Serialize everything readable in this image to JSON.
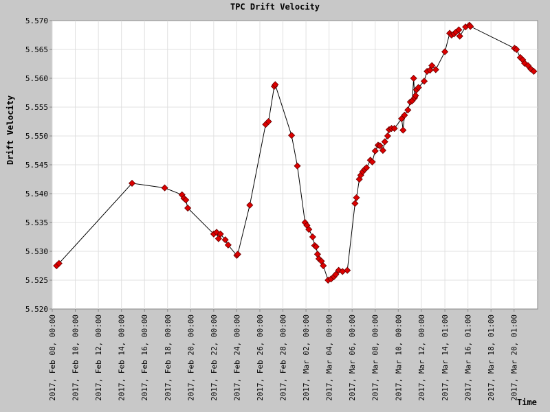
{
  "chart_data": {
    "type": "line",
    "title": "TPC Drift Velocity",
    "xlabel": "Time",
    "ylabel": "Drift Velocity",
    "ylim": [
      5.52,
      5.57
    ],
    "y_ticks": [
      "5.520",
      "5.525",
      "5.530",
      "5.535",
      "5.540",
      "5.545",
      "5.550",
      "5.555",
      "5.560",
      "5.565",
      "5.570"
    ],
    "x_ticks": [
      {
        "label": "2017, Feb 08, 00:00",
        "at": "2017-02-08T00:00"
      },
      {
        "label": "2017, Feb 10, 00:00",
        "at": "2017-02-10T00:00"
      },
      {
        "label": "2017, Feb 12, 00:00",
        "at": "2017-02-12T00:00"
      },
      {
        "label": "2017, Feb 14, 00:00",
        "at": "2017-02-14T00:00"
      },
      {
        "label": "2017, Feb 16, 00:00",
        "at": "2017-02-16T00:00"
      },
      {
        "label": "2017, Feb 18, 00:00",
        "at": "2017-02-18T00:00"
      },
      {
        "label": "2017, Feb 20, 00:00",
        "at": "2017-02-20T00:00"
      },
      {
        "label": "2017, Feb 22, 00:00",
        "at": "2017-02-22T00:00"
      },
      {
        "label": "2017, Feb 24, 00:00",
        "at": "2017-02-24T00:00"
      },
      {
        "label": "2017, Feb 26, 00:00",
        "at": "2017-02-26T00:00"
      },
      {
        "label": "2017, Feb 28, 00:00",
        "at": "2017-02-28T00:00"
      },
      {
        "label": "2017, Mar 02, 00:00",
        "at": "2017-03-02T00:00"
      },
      {
        "label": "2017, Mar 04, 00:00",
        "at": "2017-03-04T00:00"
      },
      {
        "label": "2017, Mar 06, 00:00",
        "at": "2017-03-06T00:00"
      },
      {
        "label": "2017, Mar 08, 00:00",
        "at": "2017-03-08T00:00"
      },
      {
        "label": "2017, Mar 10, 00:00",
        "at": "2017-03-10T00:00"
      },
      {
        "label": "2017, Mar 12, 00:00",
        "at": "2017-03-12T00:00"
      },
      {
        "label": "2017, Mar 14, 01:00",
        "at": "2017-03-14T01:00"
      },
      {
        "label": "2017, Mar 16, 01:00",
        "at": "2017-03-16T01:00"
      },
      {
        "label": "2017, Mar 18, 01:00",
        "at": "2017-03-18T01:00"
      },
      {
        "label": "2017, Mar 20, 01:00",
        "at": "2017-03-20T01:00"
      }
    ],
    "xlim": [
      "2017-02-08T00:00",
      "2017-03-22T02:00"
    ],
    "grid": true,
    "line_color": "#000000",
    "marker_color": "#dd0000",
    "series": [
      {
        "points": [
          [
            "2017-02-08T09:00",
            5.5275
          ],
          [
            "2017-02-08T14:00",
            5.5279
          ],
          [
            "2017-02-14T22:00",
            5.5418
          ],
          [
            "2017-02-17T18:00",
            5.541
          ],
          [
            "2017-02-19T06:00",
            5.5398
          ],
          [
            "2017-02-19T10:00",
            5.5392
          ],
          [
            "2017-02-19T14:00",
            5.5389
          ],
          [
            "2017-02-19T18:00",
            5.5375
          ],
          [
            "2017-02-22T00:00",
            5.533
          ],
          [
            "2017-02-22T06:00",
            5.5333
          ],
          [
            "2017-02-22T10:00",
            5.5322
          ],
          [
            "2017-02-22T14:00",
            5.533
          ],
          [
            "2017-02-23T00:00",
            5.532
          ],
          [
            "2017-02-23T06:00",
            5.5311
          ],
          [
            "2017-02-24T00:00",
            5.5293
          ],
          [
            "2017-02-24T02:00",
            5.5295
          ],
          [
            "2017-02-25T03:00",
            5.538
          ],
          [
            "2017-02-26T12:00",
            5.552
          ],
          [
            "2017-02-26T18:00",
            5.5525
          ],
          [
            "2017-02-27T06:00",
            5.5586
          ],
          [
            "2017-02-27T08:00",
            5.5589
          ],
          [
            "2017-02-28T18:00",
            5.5501
          ],
          [
            "2017-03-01T06:00",
            5.5448
          ],
          [
            "2017-03-01T22:00",
            5.535
          ],
          [
            "2017-03-02T02:00",
            5.5345
          ],
          [
            "2017-03-02T06:00",
            5.5338
          ],
          [
            "2017-03-02T14:00",
            5.5325
          ],
          [
            "2017-03-02T18:00",
            5.531
          ],
          [
            "2017-03-02T21:00",
            5.5308
          ],
          [
            "2017-03-03T00:00",
            5.5295
          ],
          [
            "2017-03-03T03:00",
            5.5287
          ],
          [
            "2017-03-03T08:00",
            5.5283
          ],
          [
            "2017-03-03T12:00",
            5.5275
          ],
          [
            "2017-03-03T22:00",
            5.525
          ],
          [
            "2017-03-04T04:00",
            5.5252
          ],
          [
            "2017-03-04T10:00",
            5.5256
          ],
          [
            "2017-03-04T14:00",
            5.526
          ],
          [
            "2017-03-04T20:00",
            5.5267
          ],
          [
            "2017-03-05T04:00",
            5.5265
          ],
          [
            "2017-03-05T14:00",
            5.5267
          ],
          [
            "2017-03-06T06:00",
            5.5383
          ],
          [
            "2017-03-06T09:00",
            5.5393
          ],
          [
            "2017-03-06T15:00",
            5.5425
          ],
          [
            "2017-03-06T18:00",
            5.5432
          ],
          [
            "2017-03-06T22:00",
            5.5438
          ],
          [
            "2017-03-07T02:00",
            5.5442
          ],
          [
            "2017-03-07T06:00",
            5.5445
          ],
          [
            "2017-03-07T14:00",
            5.5458
          ],
          [
            "2017-03-07T18:00",
            5.5455
          ],
          [
            "2017-03-08T00:00",
            5.5474
          ],
          [
            "2017-03-08T06:00",
            5.5484
          ],
          [
            "2017-03-08T10:00",
            5.5483
          ],
          [
            "2017-03-08T16:00",
            5.5475
          ],
          [
            "2017-03-08T20:00",
            5.549
          ],
          [
            "2017-03-09T02:00",
            5.55
          ],
          [
            "2017-03-09T05:00",
            5.5511
          ],
          [
            "2017-03-09T10:00",
            5.5513
          ],
          [
            "2017-03-09T16:00",
            5.5513
          ],
          [
            "2017-03-10T07:00",
            5.553
          ],
          [
            "2017-03-10T10:00",
            5.551
          ],
          [
            "2017-03-10T13:00",
            5.5536
          ],
          [
            "2017-03-10T20:00",
            5.5545
          ],
          [
            "2017-03-11T01:00",
            5.5559
          ],
          [
            "2017-03-11T05:00",
            5.5561
          ],
          [
            "2017-03-11T08:00",
            5.56
          ],
          [
            "2017-03-11T10:00",
            5.5566
          ],
          [
            "2017-03-11T12:00",
            5.557
          ],
          [
            "2017-03-11T14:00",
            5.558
          ],
          [
            "2017-03-11T18:00",
            5.5584
          ],
          [
            "2017-03-12T06:00",
            5.5595
          ],
          [
            "2017-03-12T12:00",
            5.5612
          ],
          [
            "2017-03-12T18:00",
            5.5614
          ],
          [
            "2017-03-12T22:00",
            5.5622
          ],
          [
            "2017-03-13T06:00",
            5.5615
          ],
          [
            "2017-03-14T01:00",
            5.5646
          ],
          [
            "2017-03-14T11:00",
            5.5678
          ],
          [
            "2017-03-14T15:00",
            5.5675
          ],
          [
            "2017-03-14T20:00",
            5.5677
          ],
          [
            "2017-03-15T00:00",
            5.568
          ],
          [
            "2017-03-15T06:00",
            5.5684
          ],
          [
            "2017-03-15T08:00",
            5.5673
          ],
          [
            "2017-03-15T20:00",
            5.5689
          ],
          [
            "2017-03-16T04:00",
            5.5692
          ],
          [
            "2017-03-16T06:00",
            5.569
          ],
          [
            "2017-03-20T02:00",
            5.5652
          ],
          [
            "2017-03-20T06:00",
            5.565
          ],
          [
            "2017-03-20T14:00",
            5.5636
          ],
          [
            "2017-03-20T19:00",
            5.5632
          ],
          [
            "2017-03-20T23:00",
            5.5626
          ],
          [
            "2017-03-21T06:00",
            5.5622
          ],
          [
            "2017-03-21T12:00",
            5.5616
          ],
          [
            "2017-03-21T18:00",
            5.5612
          ]
        ]
      }
    ]
  }
}
